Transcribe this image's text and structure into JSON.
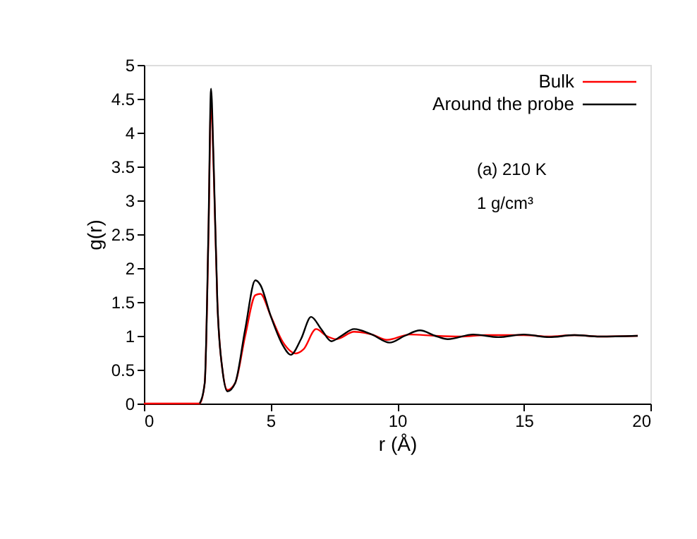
{
  "chart_data": {
    "type": "line",
    "xlabel": "r (Å)",
    "ylabel": "g(r)",
    "xlim": [
      0,
      20
    ],
    "xticks": [
      0,
      5,
      10,
      15,
      20
    ],
    "ylim": [
      0,
      5
    ],
    "yticks": [
      0,
      0.5,
      1,
      1.5,
      2,
      2.5,
      3,
      3.5,
      4,
      4.5,
      5
    ],
    "grid": false,
    "legend": "top right",
    "line_style": "solid",
    "marker": "none",
    "annotations": [
      "(a)  210 K",
      "1 g/cm³"
    ],
    "series": [
      {
        "name": "Bulk",
        "color": "#ff0000",
        "x": [
          0,
          2.2,
          2.4,
          2.55,
          2.65,
          2.75,
          2.9,
          3.1,
          3.3,
          3.6,
          4.0,
          4.4,
          4.6,
          5.0,
          5.5,
          6.0,
          6.3,
          6.8,
          7.2,
          7.6,
          8.3,
          9.0,
          9.6,
          10.5,
          11.5,
          12.5,
          13.5,
          15,
          16,
          17,
          18,
          19.5
        ],
        "values": [
          0,
          0,
          0.3,
          2.5,
          4.45,
          3.5,
          1.5,
          0.5,
          0.2,
          0.3,
          1.0,
          1.6,
          1.62,
          1.3,
          0.9,
          0.74,
          0.8,
          1.1,
          1.0,
          0.95,
          1.06,
          1.02,
          0.94,
          1.02,
          1.0,
          0.99,
          1.01,
          1.01,
          0.99,
          1.01,
          0.99,
          1.0
        ]
      },
      {
        "name": "Around the probe",
        "color": "#000000",
        "x": [
          2.2,
          2.4,
          2.55,
          2.65,
          2.75,
          2.9,
          3.1,
          3.3,
          3.6,
          4.0,
          4.4,
          4.6,
          5.0,
          5.5,
          5.8,
          6.2,
          6.6,
          7.0,
          7.4,
          7.8,
          8.3,
          9.0,
          9.7,
          10.3,
          10.9,
          11.5,
          12.0,
          13.0,
          14.0,
          15,
          16,
          17,
          18,
          19.5
        ],
        "values": [
          0,
          0.3,
          2.6,
          4.65,
          3.6,
          1.5,
          0.5,
          0.18,
          0.3,
          1.1,
          1.82,
          1.75,
          1.3,
          0.85,
          0.72,
          0.95,
          1.28,
          1.1,
          0.92,
          1.0,
          1.1,
          1.02,
          0.9,
          1.0,
          1.08,
          1.0,
          0.95,
          1.02,
          0.98,
          1.02,
          0.98,
          1.01,
          0.99,
          1.0
        ]
      }
    ]
  }
}
